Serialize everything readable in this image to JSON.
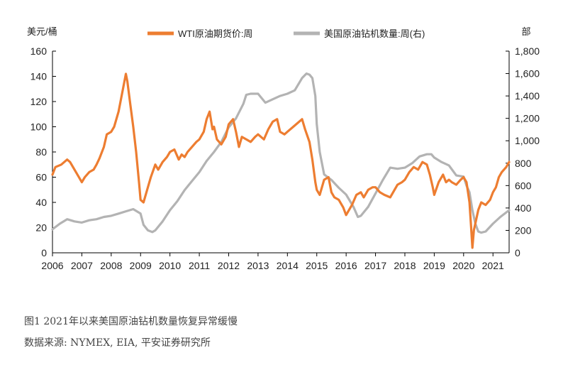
{
  "chart_data": {
    "type": "line",
    "left_unit": "美元/桶",
    "right_unit": "部",
    "x_tick_labels": [
      "2006",
      "2007",
      "2008",
      "2009",
      "2010",
      "2011",
      "2012",
      "2013",
      "2014",
      "2015",
      "2016",
      "2017",
      "2018",
      "2019",
      "2020",
      "2021"
    ],
    "xlim": [
      2006.0,
      2021.55
    ],
    "y_left": {
      "ylim": [
        0,
        160
      ],
      "ticks": [
        "0",
        "20",
        "40",
        "60",
        "80",
        "100",
        "120",
        "140",
        "160"
      ]
    },
    "y_right": {
      "ylim": [
        0,
        1800
      ],
      "ticks": [
        "0",
        "200",
        "400",
        "600",
        "800",
        "1,000",
        "1,200",
        "1,400",
        "1,600",
        "1,800"
      ]
    },
    "grid": false,
    "legend_position": "top",
    "series": [
      {
        "name": "WTI原油期货价:周",
        "axis": "left",
        "color": "#ED7D31",
        "x": [
          2006.0,
          2006.1,
          2006.3,
          2006.5,
          2006.6,
          2006.75,
          2006.9,
          2007.0,
          2007.1,
          2007.25,
          2007.4,
          2007.5,
          2007.6,
          2007.75,
          2007.85,
          2008.0,
          2008.1,
          2008.25,
          2008.4,
          2008.5,
          2008.55,
          2008.65,
          2008.75,
          2008.85,
          2008.95,
          2009.0,
          2009.1,
          2009.2,
          2009.35,
          2009.5,
          2009.6,
          2009.75,
          2009.9,
          2010.0,
          2010.15,
          2010.3,
          2010.4,
          2010.5,
          2010.6,
          2010.75,
          2010.9,
          2011.0,
          2011.15,
          2011.25,
          2011.35,
          2011.45,
          2011.5,
          2011.6,
          2011.75,
          2011.9,
          2012.0,
          2012.15,
          2012.25,
          2012.35,
          2012.45,
          2012.6,
          2012.75,
          2012.9,
          2013.0,
          2013.2,
          2013.35,
          2013.5,
          2013.65,
          2013.75,
          2013.9,
          2014.0,
          2014.2,
          2014.4,
          2014.5,
          2014.6,
          2014.75,
          2014.85,
          2014.95,
          2015.0,
          2015.1,
          2015.25,
          2015.4,
          2015.5,
          2015.6,
          2015.75,
          2015.9,
          2016.0,
          2016.1,
          2016.2,
          2016.35,
          2016.5,
          2016.6,
          2016.75,
          2016.9,
          2017.0,
          2017.15,
          2017.3,
          2017.5,
          2017.6,
          2017.75,
          2017.9,
          2018.0,
          2018.15,
          2018.3,
          2018.45,
          2018.6,
          2018.75,
          2018.85,
          2018.95,
          2019.0,
          2019.15,
          2019.3,
          2019.4,
          2019.5,
          2019.6,
          2019.75,
          2019.9,
          2020.0,
          2020.1,
          2020.2,
          2020.25,
          2020.3,
          2020.35,
          2020.5,
          2020.6,
          2020.75,
          2020.9,
          2021.0,
          2021.1,
          2021.2,
          2021.3,
          2021.45,
          2021.55
        ],
        "values": [
          62,
          68,
          70,
          74,
          72,
          66,
          60,
          56,
          60,
          64,
          66,
          70,
          75,
          84,
          94,
          96,
          100,
          112,
          130,
          142,
          136,
          118,
          100,
          80,
          55,
          42,
          40,
          48,
          60,
          70,
          66,
          72,
          76,
          80,
          82,
          74,
          78,
          76,
          80,
          84,
          88,
          90,
          96,
          106,
          112,
          98,
          100,
          90,
          86,
          92,
          102,
          106,
          96,
          84,
          92,
          90,
          88,
          92,
          94,
          90,
          98,
          104,
          106,
          96,
          94,
          96,
          100,
          104,
          106,
          98,
          88,
          74,
          56,
          50,
          46,
          58,
          60,
          48,
          44,
          42,
          36,
          30,
          34,
          38,
          46,
          48,
          44,
          50,
          52,
          52,
          48,
          46,
          44,
          48,
          54,
          56,
          58,
          64,
          68,
          66,
          72,
          70,
          62,
          52,
          46,
          56,
          62,
          56,
          58,
          56,
          54,
          58,
          60,
          56,
          40,
          22,
          4,
          18,
          34,
          40,
          38,
          42,
          48,
          52,
          60,
          64,
          68,
          72
        ]
      },
      {
        "name": "美国原油钻机数量:周(右)",
        "axis": "right",
        "color": "#B3B3B3",
        "x": [
          2006.0,
          2006.25,
          2006.5,
          2006.75,
          2007.0,
          2007.25,
          2007.5,
          2007.75,
          2008.0,
          2008.25,
          2008.5,
          2008.75,
          2009.0,
          2009.1,
          2009.25,
          2009.4,
          2009.5,
          2009.75,
          2010.0,
          2010.25,
          2010.5,
          2010.75,
          2011.0,
          2011.25,
          2011.5,
          2011.75,
          2012.0,
          2012.25,
          2012.5,
          2012.6,
          2012.75,
          2013.0,
          2013.25,
          2013.5,
          2013.75,
          2014.0,
          2014.25,
          2014.5,
          2014.65,
          2014.75,
          2014.85,
          2014.95,
          2015.0,
          2015.1,
          2015.25,
          2015.5,
          2015.75,
          2016.0,
          2016.25,
          2016.4,
          2016.5,
          2016.75,
          2017.0,
          2017.25,
          2017.5,
          2017.75,
          2018.0,
          2018.25,
          2018.5,
          2018.75,
          2018.9,
          2019.0,
          2019.25,
          2019.5,
          2019.75,
          2020.0,
          2020.1,
          2020.2,
          2020.3,
          2020.4,
          2020.5,
          2020.6,
          2020.75,
          2021.0,
          2021.25,
          2021.5,
          2021.55
        ],
        "values": [
          210,
          260,
          300,
          280,
          270,
          290,
          300,
          320,
          330,
          350,
          370,
          390,
          350,
          250,
          200,
          185,
          200,
          280,
          380,
          460,
          560,
          640,
          720,
          820,
          900,
          990,
          1120,
          1200,
          1330,
          1410,
          1420,
          1420,
          1340,
          1370,
          1400,
          1420,
          1450,
          1560,
          1600,
          1590,
          1560,
          1400,
          1150,
          900,
          700,
          650,
          580,
          520,
          410,
          320,
          330,
          410,
          530,
          650,
          760,
          750,
          760,
          800,
          860,
          880,
          880,
          850,
          810,
          780,
          690,
          680,
          600,
          540,
          380,
          260,
          190,
          180,
          190,
          260,
          320,
          370,
          380
        ]
      }
    ]
  },
  "caption": {
    "title": "图1   2021年以来美国原油钻机数量恢复异常缓慢",
    "source": "数据来源: NYMEX, EIA, 平安证券研究所"
  }
}
